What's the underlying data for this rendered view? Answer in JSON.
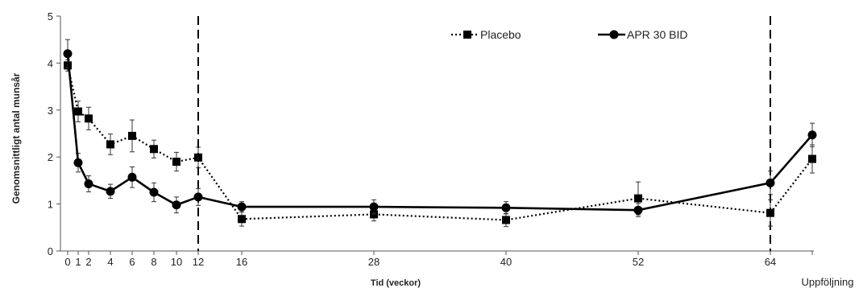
{
  "chart_data": {
    "type": "line",
    "xlabel": "Tid (veckor)",
    "ylabel": "Genomsnittligt antal munsår",
    "ylim": [
      0,
      5
    ],
    "yticks": [
      "0",
      "1",
      "2",
      "3",
      "4",
      "5"
    ],
    "xticks": [
      "0",
      "1",
      "2",
      "4",
      "6",
      "8",
      "10",
      "12",
      "16",
      "28",
      "40",
      "52",
      "64",
      "Uppföljning"
    ],
    "reference_lines": [
      "12",
      "64"
    ],
    "legend_position": "top-right",
    "series": [
      {
        "name": "Placebo",
        "line_style": "dotted",
        "marker": "square",
        "x": [
          "0",
          "1",
          "2",
          "4",
          "6",
          "8",
          "10",
          "12",
          "16",
          "28",
          "40",
          "52",
          "64",
          "Uppföljning"
        ],
        "y": [
          3.95,
          2.97,
          2.82,
          2.27,
          2.45,
          2.17,
          1.9,
          1.99,
          0.68,
          0.78,
          0.66,
          1.12,
          0.81,
          1.96
        ],
        "err": [
          0.12,
          0.22,
          0.24,
          0.22,
          0.34,
          0.19,
          0.2,
          0.22,
          0.15,
          0.14,
          0.14,
          0.35,
          0.28,
          0.3
        ]
      },
      {
        "name": "APR 30 BID",
        "line_style": "solid",
        "marker": "circle",
        "x": [
          "0",
          "1",
          "2",
          "4",
          "6",
          "8",
          "10",
          "12",
          "16",
          "28",
          "40",
          "52",
          "64",
          "Uppföljning"
        ],
        "y": [
          4.2,
          1.88,
          1.43,
          1.27,
          1.57,
          1.25,
          0.98,
          1.15,
          0.94,
          0.94,
          0.92,
          0.87,
          1.45,
          2.47
        ],
        "err": [
          0.3,
          0.2,
          0.17,
          0.15,
          0.22,
          0.2,
          0.17,
          0.18,
          0.11,
          0.15,
          0.13,
          0.14,
          0.25,
          0.25
        ]
      }
    ],
    "colors": {
      "series": "#000000",
      "axis": "#555555",
      "text": "#222222"
    }
  }
}
